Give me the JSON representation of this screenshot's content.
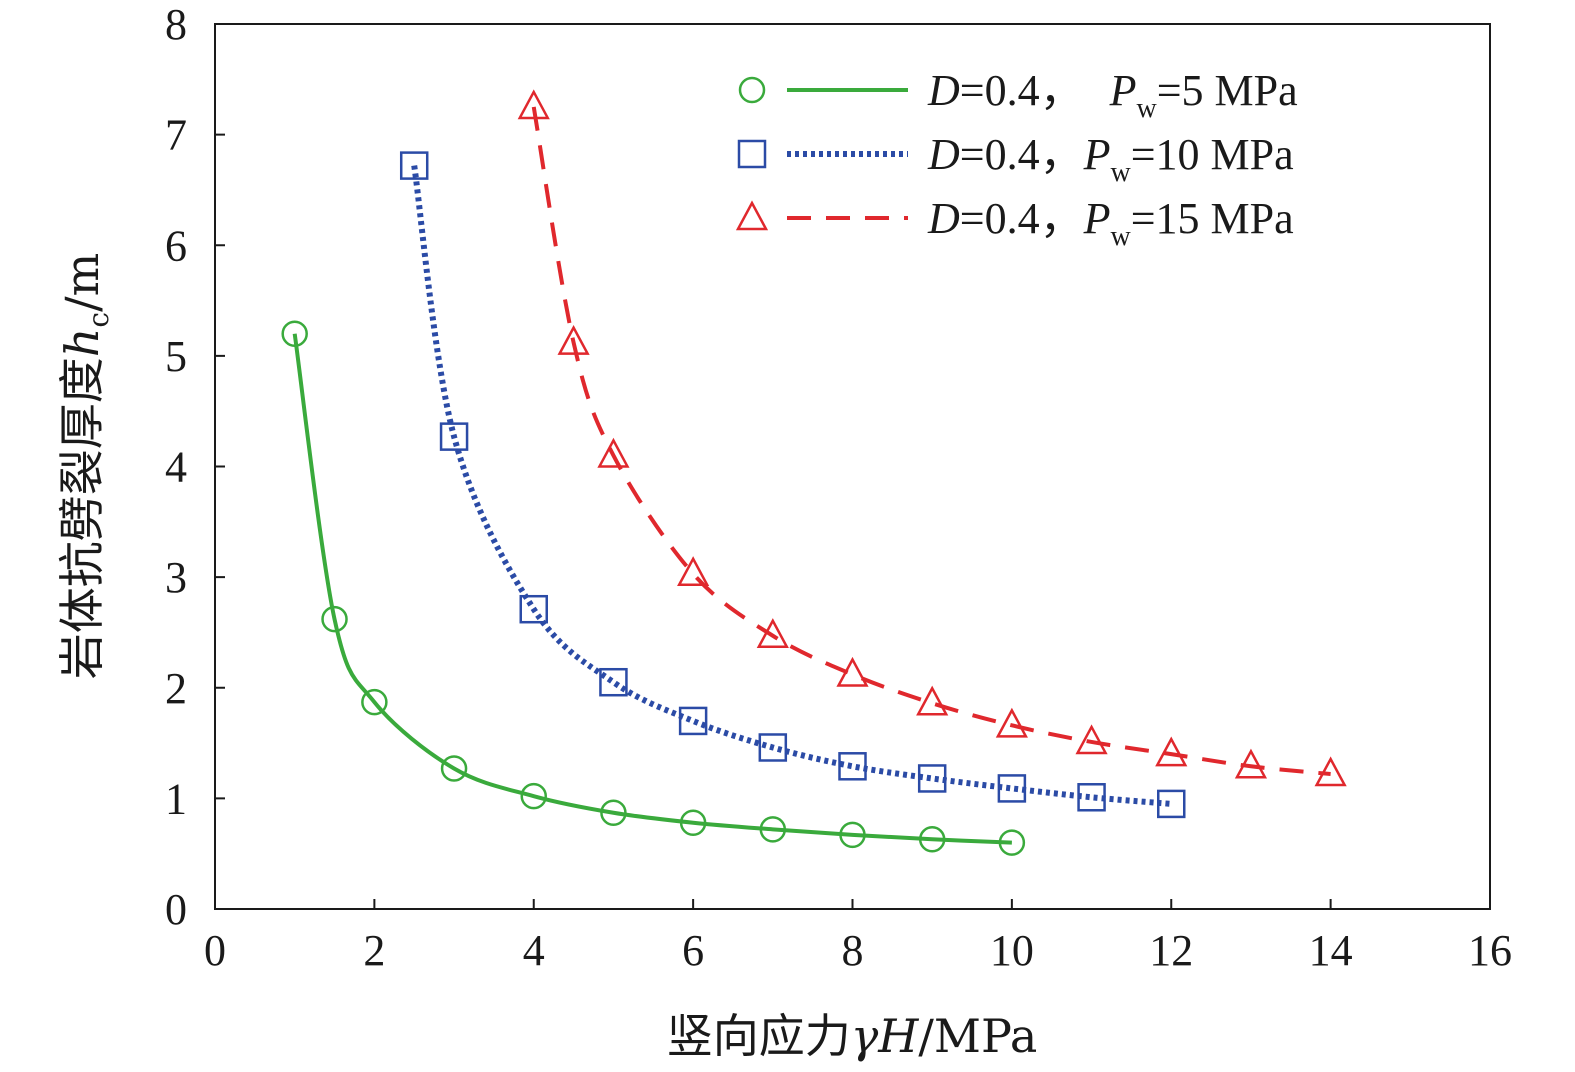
{
  "chart_data": {
    "type": "line",
    "xlabel": {
      "prefix": "竖向应力",
      "var": "γH",
      "unit": "/MPa"
    },
    "ylabel": {
      "prefix": "岩体抗劈裂厚度",
      "var": "h",
      "sub": "c",
      "unit": "/m"
    },
    "xlim": [
      0,
      16
    ],
    "ylim": [
      0,
      8
    ],
    "xticks": [
      0,
      2,
      4,
      6,
      8,
      10,
      12,
      14,
      16
    ],
    "yticks": [
      0,
      1,
      2,
      3,
      4,
      5,
      6,
      7,
      8
    ],
    "grid": false,
    "legend_position": "top-right",
    "series": [
      {
        "label": {
          "var": "D",
          "d_value": "=0.4，",
          "p": "P",
          "p_sub": "w",
          "p_value": "=5 MPa"
        },
        "marker": "circle",
        "line_style": "solid",
        "color": "#3aaa3c",
        "x": [
          1,
          1.5,
          2,
          3,
          4,
          5,
          6,
          7,
          8,
          9,
          10
        ],
        "y": [
          5.2,
          2.62,
          1.87,
          1.27,
          1.02,
          0.87,
          0.78,
          0.72,
          0.67,
          0.63,
          0.6
        ]
      },
      {
        "label": {
          "var": "D",
          "d_value": "=0.4，",
          "p": "P",
          "p_sub": "w",
          "p_value": "=10 MPa"
        },
        "marker": "square",
        "line_style": "dotted",
        "color": "#2b4ba6",
        "x": [
          2.5,
          3,
          4,
          5,
          6,
          7,
          8,
          9,
          10,
          11,
          12
        ],
        "y": [
          6.72,
          4.27,
          2.71,
          2.05,
          1.7,
          1.46,
          1.29,
          1.18,
          1.09,
          1.01,
          0.95
        ]
      },
      {
        "label": {
          "var": "D",
          "d_value": "=0.4，",
          "p": "P",
          "p_sub": "w",
          "p_value": "=15 MPa"
        },
        "marker": "triangle",
        "line_style": "dashed",
        "color": "#e0282d",
        "x": [
          4,
          4.5,
          5,
          6,
          7,
          8,
          9,
          10,
          11,
          12,
          13,
          14
        ],
        "y": [
          7.25,
          5.12,
          4.1,
          3.03,
          2.47,
          2.12,
          1.86,
          1.66,
          1.51,
          1.4,
          1.29,
          1.22
        ]
      }
    ]
  }
}
